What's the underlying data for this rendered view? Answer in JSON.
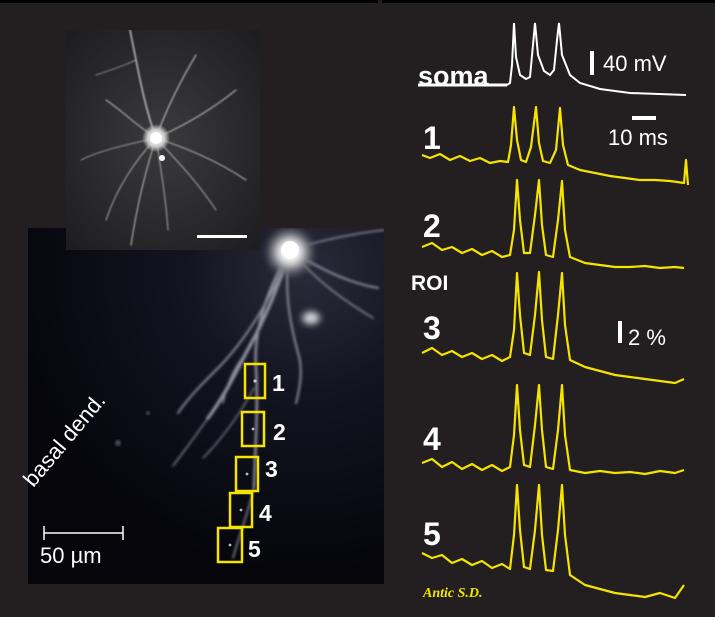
{
  "labels": {
    "soma": "soma",
    "roi": "ROI",
    "basal": "basal dend.",
    "scale_um": "50 µm",
    "signature": "Antic S.D."
  },
  "roi_markers": [
    "1",
    "2",
    "3",
    "4",
    "5"
  ],
  "traces": {
    "numbers": [
      "1",
      "2",
      "3",
      "4",
      "5"
    ]
  },
  "scale_bars": {
    "voltage": "40 mV",
    "time": "10 ms",
    "percent": "2 %"
  },
  "colors": {
    "background": "#231f20",
    "trace_yellow": "#f5e300",
    "soma_trace": "#ffffff",
    "roi_box": "#f5e300"
  }
}
